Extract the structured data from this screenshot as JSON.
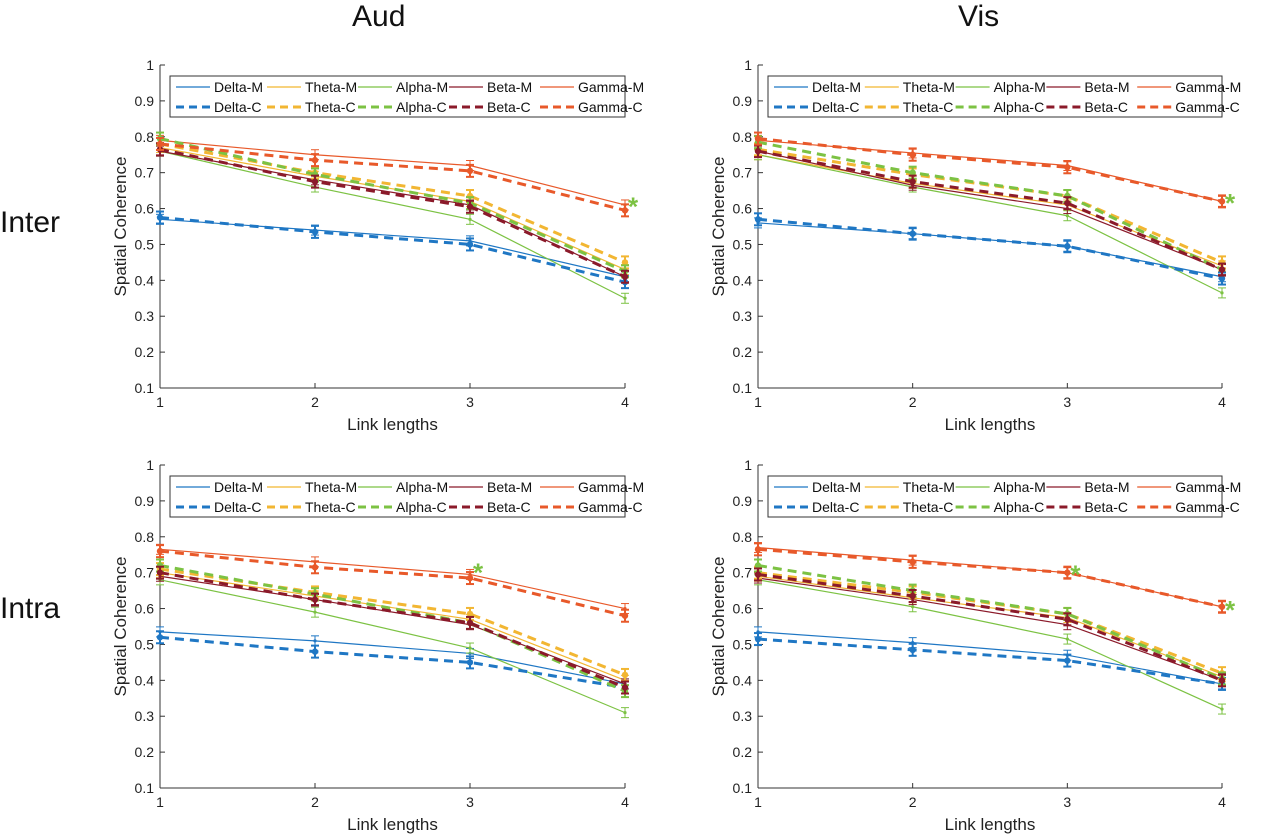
{
  "column_titles": [
    "Aud",
    "Vis"
  ],
  "row_titles": [
    "Inter",
    "Intra"
  ],
  "colors": {
    "Delta": "#1f77c4",
    "Theta": "#f2b632",
    "Alpha": "#7cc243",
    "Beta": "#8b1a2a",
    "Gamma": "#e8592a",
    "axis": "#333333",
    "significance": "#7cc243"
  },
  "chart_data": [
    {
      "type": "line",
      "panel": "Aud / Inter",
      "xlabel": "Link lengths",
      "ylabel": "Spatial Coherence",
      "x": [
        1,
        2,
        3,
        4
      ],
      "xticks": [
        "1",
        "2",
        "3",
        "4"
      ],
      "ylim": [
        0.1,
        1
      ],
      "yticks": [
        "0.1",
        "0.2",
        "0.3",
        "0.4",
        "0.5",
        "0.6",
        "0.7",
        "0.8",
        "0.9",
        "1"
      ],
      "grid": false,
      "legend": "top",
      "series": [
        {
          "name": "Delta-M",
          "band": "Delta",
          "style": "solid",
          "values": [
            0.57,
            0.54,
            0.51,
            0.41
          ]
        },
        {
          "name": "Theta-M",
          "band": "Theta",
          "style": "solid",
          "values": [
            0.77,
            0.69,
            0.62,
            0.43
          ]
        },
        {
          "name": "Alpha-M",
          "band": "Alpha",
          "style": "solid",
          "values": [
            0.76,
            0.66,
            0.57,
            0.35
          ]
        },
        {
          "name": "Beta-M",
          "band": "Beta",
          "style": "solid",
          "values": [
            0.76,
            0.68,
            0.61,
            0.41
          ]
        },
        {
          "name": "Gamma-M",
          "band": "Gamma",
          "style": "solid",
          "values": [
            0.79,
            0.75,
            0.72,
            0.61
          ]
        },
        {
          "name": "Delta-C",
          "band": "Delta",
          "style": "dashed",
          "values": [
            0.575,
            0.535,
            0.5,
            0.395
          ]
        },
        {
          "name": "Theta-C",
          "band": "Theta",
          "style": "dashed",
          "values": [
            0.78,
            0.7,
            0.635,
            0.45
          ]
        },
        {
          "name": "Alpha-C",
          "band": "Alpha",
          "style": "dashed",
          "values": [
            0.795,
            0.695,
            0.615,
            0.425
          ]
        },
        {
          "name": "Beta-C",
          "band": "Beta",
          "style": "dashed",
          "values": [
            0.765,
            0.675,
            0.605,
            0.41
          ]
        },
        {
          "name": "Gamma-C",
          "band": "Gamma",
          "style": "dashed",
          "values": [
            0.78,
            0.735,
            0.705,
            0.595
          ]
        }
      ],
      "significance": [
        {
          "x": 4,
          "y": 0.625,
          "label": "*"
        }
      ]
    },
    {
      "type": "line",
      "panel": "Vis / Inter",
      "xlabel": "Link lengths",
      "ylabel": "Spatial Coherence",
      "x": [
        1,
        2,
        3,
        4
      ],
      "xticks": [
        "1",
        "2",
        "3",
        "4"
      ],
      "ylim": [
        0.1,
        1
      ],
      "yticks": [
        "0.1",
        "0.2",
        "0.3",
        "0.4",
        "0.5",
        "0.6",
        "0.7",
        "0.8",
        "0.9",
        "1"
      ],
      "grid": false,
      "legend": "top",
      "series": [
        {
          "name": "Delta-M",
          "band": "Delta",
          "style": "solid",
          "values": [
            0.56,
            0.53,
            0.495,
            0.41
          ]
        },
        {
          "name": "Theta-M",
          "band": "Theta",
          "style": "solid",
          "values": [
            0.75,
            0.67,
            0.61,
            0.44
          ]
        },
        {
          "name": "Alpha-M",
          "band": "Alpha",
          "style": "solid",
          "values": [
            0.75,
            0.66,
            0.58,
            0.365
          ]
        },
        {
          "name": "Beta-M",
          "band": "Beta",
          "style": "solid",
          "values": [
            0.76,
            0.665,
            0.6,
            0.43
          ]
        },
        {
          "name": "Gamma-M",
          "band": "Gamma",
          "style": "solid",
          "values": [
            0.79,
            0.755,
            0.72,
            0.62
          ]
        },
        {
          "name": "Delta-C",
          "band": "Delta",
          "style": "dashed",
          "values": [
            0.57,
            0.53,
            0.495,
            0.405
          ]
        },
        {
          "name": "Theta-C",
          "band": "Theta",
          "style": "dashed",
          "values": [
            0.765,
            0.695,
            0.635,
            0.45
          ]
        },
        {
          "name": "Alpha-C",
          "band": "Alpha",
          "style": "dashed",
          "values": [
            0.785,
            0.7,
            0.635,
            0.43
          ]
        },
        {
          "name": "Beta-C",
          "band": "Beta",
          "style": "dashed",
          "values": [
            0.76,
            0.675,
            0.615,
            0.43
          ]
        },
        {
          "name": "Gamma-C",
          "band": "Gamma",
          "style": "dashed",
          "values": [
            0.795,
            0.75,
            0.715,
            0.62
          ]
        }
      ],
      "significance": [
        {
          "x": 4,
          "y": 0.635,
          "label": "*"
        }
      ]
    },
    {
      "type": "line",
      "panel": "Aud / Intra",
      "xlabel": "Link lengths",
      "ylabel": "Spatial Coherence",
      "x": [
        1,
        2,
        3,
        4
      ],
      "xticks": [
        "1",
        "2",
        "3",
        "4"
      ],
      "ylim": [
        0.1,
        1
      ],
      "yticks": [
        "0.1",
        "0.2",
        "0.3",
        "0.4",
        "0.5",
        "0.6",
        "0.7",
        "0.8",
        "0.9",
        "1"
      ],
      "grid": false,
      "legend": "top",
      "series": [
        {
          "name": "Delta-M",
          "band": "Delta",
          "style": "solid",
          "values": [
            0.535,
            0.51,
            0.475,
            0.39
          ]
        },
        {
          "name": "Theta-M",
          "band": "Theta",
          "style": "solid",
          "values": [
            0.7,
            0.635,
            0.57,
            0.4
          ]
        },
        {
          "name": "Alpha-M",
          "band": "Alpha",
          "style": "solid",
          "values": [
            0.68,
            0.59,
            0.49,
            0.31
          ]
        },
        {
          "name": "Beta-M",
          "band": "Beta",
          "style": "solid",
          "values": [
            0.69,
            0.625,
            0.555,
            0.39
          ]
        },
        {
          "name": "Gamma-M",
          "band": "Gamma",
          "style": "solid",
          "values": [
            0.765,
            0.73,
            0.695,
            0.6
          ]
        },
        {
          "name": "Delta-C",
          "band": "Delta",
          "style": "dashed",
          "values": [
            0.52,
            0.48,
            0.45,
            0.38
          ]
        },
        {
          "name": "Theta-C",
          "band": "Theta",
          "style": "dashed",
          "values": [
            0.71,
            0.645,
            0.585,
            0.415
          ]
        },
        {
          "name": "Alpha-C",
          "band": "Alpha",
          "style": "dashed",
          "values": [
            0.72,
            0.64,
            0.56,
            0.37
          ]
        },
        {
          "name": "Beta-C",
          "band": "Beta",
          "style": "dashed",
          "values": [
            0.7,
            0.625,
            0.56,
            0.38
          ]
        },
        {
          "name": "Gamma-C",
          "band": "Gamma",
          "style": "dashed",
          "values": [
            0.76,
            0.715,
            0.685,
            0.58
          ]
        }
      ],
      "significance": [
        {
          "x": 3,
          "y": 0.72,
          "label": "*"
        }
      ]
    },
    {
      "type": "line",
      "panel": "Vis / Intra",
      "xlabel": "Link lengths",
      "ylabel": "Spatial Coherence",
      "x": [
        1,
        2,
        3,
        4
      ],
      "xticks": [
        "1",
        "2",
        "3",
        "4"
      ],
      "ylim": [
        0.1,
        1
      ],
      "yticks": [
        "0.1",
        "0.2",
        "0.3",
        "0.4",
        "0.5",
        "0.6",
        "0.7",
        "0.8",
        "0.9",
        "1"
      ],
      "grid": false,
      "legend": "top",
      "series": [
        {
          "name": "Delta-M",
          "band": "Delta",
          "style": "solid",
          "values": [
            0.535,
            0.505,
            0.47,
            0.39
          ]
        },
        {
          "name": "Theta-M",
          "band": "Theta",
          "style": "solid",
          "values": [
            0.69,
            0.63,
            0.575,
            0.41
          ]
        },
        {
          "name": "Alpha-M",
          "band": "Alpha",
          "style": "solid",
          "values": [
            0.68,
            0.605,
            0.515,
            0.32
          ]
        },
        {
          "name": "Beta-M",
          "band": "Beta",
          "style": "solid",
          "values": [
            0.685,
            0.625,
            0.555,
            0.4
          ]
        },
        {
          "name": "Gamma-M",
          "band": "Gamma",
          "style": "solid",
          "values": [
            0.77,
            0.735,
            0.7,
            0.605
          ]
        },
        {
          "name": "Delta-C",
          "band": "Delta",
          "style": "dashed",
          "values": [
            0.515,
            0.485,
            0.455,
            0.39
          ]
        },
        {
          "name": "Theta-C",
          "band": "Theta",
          "style": "dashed",
          "values": [
            0.7,
            0.645,
            0.585,
            0.42
          ]
        },
        {
          "name": "Alpha-C",
          "band": "Alpha",
          "style": "dashed",
          "values": [
            0.72,
            0.65,
            0.585,
            0.405
          ]
        },
        {
          "name": "Beta-C",
          "band": "Beta",
          "style": "dashed",
          "values": [
            0.695,
            0.635,
            0.57,
            0.4
          ]
        },
        {
          "name": "Gamma-C",
          "band": "Gamma",
          "style": "dashed",
          "values": [
            0.765,
            0.73,
            0.7,
            0.605
          ]
        }
      ],
      "significance": [
        {
          "x": 3,
          "y": 0.715,
          "label": "*"
        },
        {
          "x": 4,
          "y": 0.615,
          "label": "*"
        }
      ]
    }
  ]
}
